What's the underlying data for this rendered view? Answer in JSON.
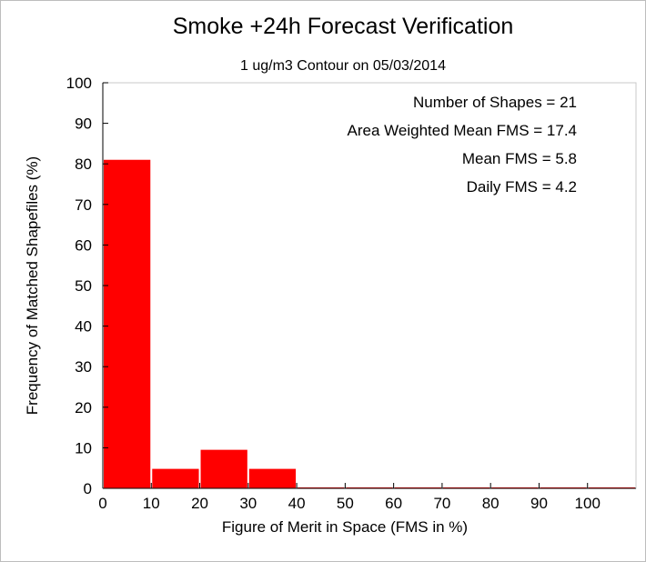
{
  "chart_data": {
    "type": "bar",
    "title": "Smoke +24h Forecast Verification",
    "subtitle": "1 ug/m3 Contour on 05/03/2014",
    "xlabel": "Figure of Merit in Space (FMS in %)",
    "ylabel": "Frequency of Matched Shapefiles (%)",
    "xlim": [
      0,
      110
    ],
    "ylim": [
      0,
      100
    ],
    "bin_width": 10,
    "x_ticks": [
      "0",
      "10",
      "20",
      "30",
      "40",
      "50",
      "60",
      "70",
      "80",
      "90",
      "100"
    ],
    "y_ticks": [
      "0",
      "10",
      "20",
      "30",
      "40",
      "50",
      "60",
      "70",
      "80",
      "90",
      "100"
    ],
    "bins": [
      0,
      10,
      20,
      30,
      40,
      50,
      60,
      70,
      80,
      90,
      100
    ],
    "values": [
      81,
      4.8,
      9.5,
      4.8,
      0,
      0,
      0,
      0,
      0,
      0,
      0
    ],
    "bar_color": "#ff0000",
    "grid": false,
    "annotations": [
      "Number of Shapes = 21",
      "Area Weighted Mean FMS = 17.4",
      "Mean FMS = 5.8",
      "Daily FMS = 4.2"
    ]
  }
}
